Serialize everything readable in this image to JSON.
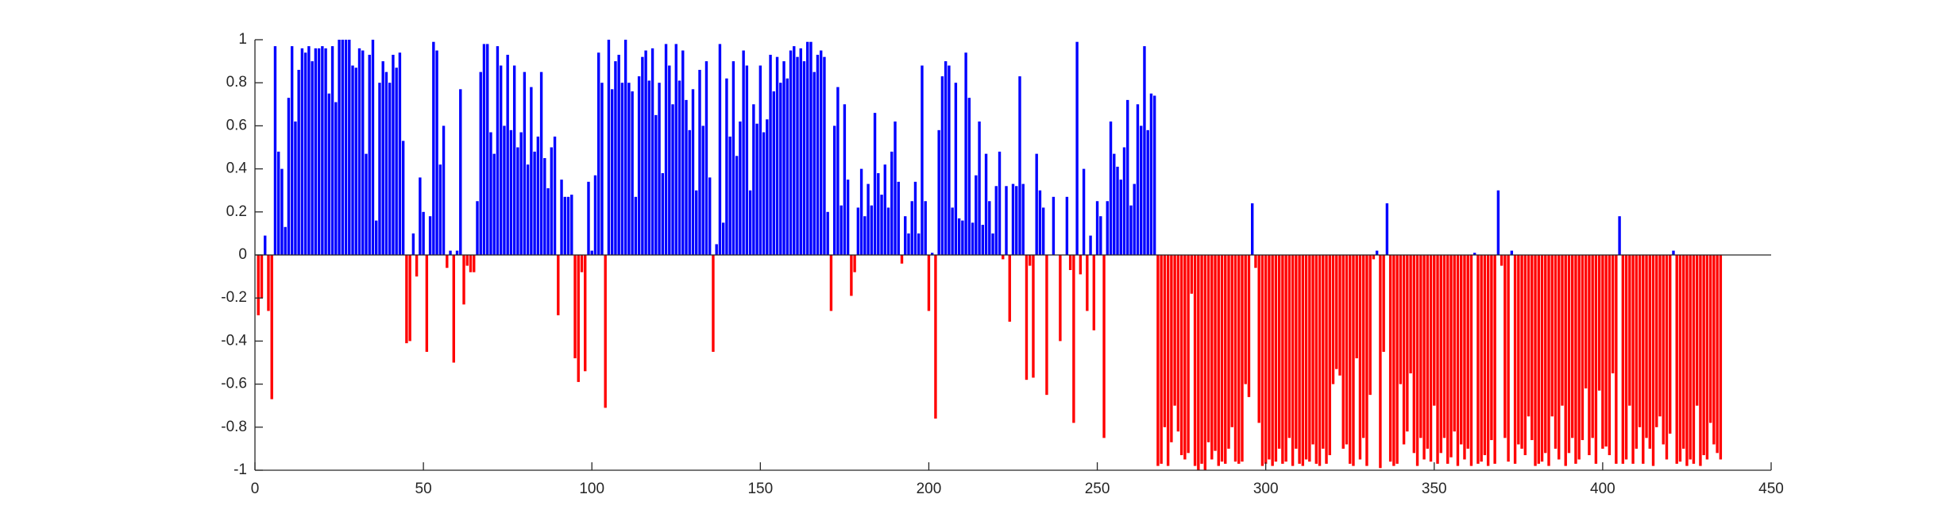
{
  "chart_data": {
    "type": "bar",
    "positive_color": "#0000ff",
    "negative_color": "#ff0000",
    "xlim": [
      0,
      450
    ],
    "xticks": [
      0,
      50,
      100,
      150,
      200,
      250,
      300,
      350,
      400,
      450
    ],
    "ylim": [
      -1,
      1
    ],
    "yticks": [
      -1,
      -0.8,
      -0.6,
      -0.4,
      -0.2,
      0,
      0.2,
      0.4,
      0.6,
      0.8,
      1
    ],
    "x": [
      1,
      2,
      3,
      4,
      5,
      6,
      7,
      8,
      9,
      10,
      11,
      12,
      13,
      14,
      15,
      16,
      17,
      18,
      19,
      20,
      21,
      22,
      23,
      24,
      25,
      26,
      27,
      28,
      29,
      30,
      31,
      32,
      33,
      34,
      35,
      36,
      37,
      38,
      39,
      40,
      41,
      42,
      43,
      44,
      45,
      46,
      47,
      48,
      49,
      50,
      51,
      52,
      53,
      54,
      55,
      56,
      57,
      58,
      59,
      60,
      61,
      62,
      63,
      64,
      65,
      66,
      67,
      68,
      69,
      70,
      71,
      72,
      73,
      74,
      75,
      76,
      77,
      78,
      79,
      80,
      81,
      82,
      83,
      84,
      85,
      86,
      87,
      88,
      89,
      90,
      91,
      92,
      93,
      94,
      95,
      96,
      97,
      98,
      99,
      100,
      101,
      102,
      103,
      104,
      105,
      106,
      107,
      108,
      109,
      110,
      111,
      112,
      113,
      114,
      115,
      116,
      117,
      118,
      119,
      120,
      121,
      122,
      123,
      124,
      125,
      126,
      127,
      128,
      129,
      130,
      131,
      132,
      133,
      134,
      135,
      136,
      137,
      138,
      139,
      140,
      141,
      142,
      143,
      144,
      145,
      146,
      147,
      148,
      149,
      150,
      151,
      152,
      153,
      154,
      155,
      156,
      157,
      158,
      159,
      160,
      161,
      162,
      163,
      164,
      165,
      166,
      167,
      168,
      169,
      170,
      171,
      172,
      173,
      174,
      175,
      176,
      177,
      178,
      179,
      180,
      181,
      182,
      183,
      184,
      185,
      186,
      187,
      188,
      189,
      190,
      191,
      192,
      193,
      194,
      195,
      196,
      197,
      198,
      199,
      200,
      201,
      202,
      203,
      204,
      205,
      206,
      207,
      208,
      209,
      210,
      211,
      212,
      213,
      214,
      215,
      216,
      217,
      218,
      219,
      220,
      221,
      222,
      223,
      224,
      225,
      226,
      227,
      228,
      229,
      230,
      231,
      232,
      233,
      234,
      235,
      236,
      237,
      238,
      239,
      240,
      241,
      242,
      243,
      244,
      245,
      246,
      247,
      248,
      249,
      250,
      251,
      252,
      253,
      254,
      255,
      256,
      257,
      258,
      259,
      260,
      261,
      262,
      263,
      264,
      265,
      266,
      267,
      268,
      269,
      270,
      271,
      272,
      273,
      274,
      275,
      276,
      277,
      278,
      279,
      280,
      281,
      282,
      283,
      284,
      285,
      286,
      287,
      288,
      289,
      290,
      291,
      292,
      293,
      294,
      295,
      296,
      297,
      298,
      299,
      300,
      301,
      302,
      303,
      304,
      305,
      306,
      307,
      308,
      309,
      310,
      311,
      312,
      313,
      314,
      315,
      316,
      317,
      318,
      319,
      320,
      321,
      322,
      323,
      324,
      325,
      326,
      327,
      328,
      329,
      330,
      331,
      332,
      333,
      334,
      335,
      336,
      337,
      338,
      339,
      340,
      341,
      342,
      343,
      344,
      345,
      346,
      347,
      348,
      349,
      350,
      351,
      352,
      353,
      354,
      355,
      356,
      357,
      358,
      359,
      360,
      361,
      362,
      363,
      364,
      365,
      366,
      367,
      368,
      369,
      370,
      371,
      372,
      373,
      374,
      375,
      376,
      377,
      378,
      379,
      380,
      381,
      382,
      383,
      384,
      385,
      386,
      387,
      388,
      389,
      390,
      391,
      392,
      393,
      394,
      395,
      396,
      397,
      398,
      399,
      400,
      401,
      402,
      403,
      404,
      405,
      406,
      407,
      408,
      409,
      410,
      411,
      412,
      413,
      414,
      415,
      416,
      417,
      418,
      419,
      420,
      421,
      422,
      423,
      424,
      425,
      426,
      427,
      428,
      429,
      430,
      431,
      432,
      433,
      434,
      435
    ],
    "values": [
      -0.28,
      -0.2,
      0.09,
      -0.26,
      -0.67,
      0.97,
      0.48,
      0.4,
      0.13,
      0.73,
      0.97,
      0.62,
      0.86,
      0.96,
      0.94,
      0.97,
      0.9,
      0.96,
      0.96,
      0.97,
      0.96,
      0.75,
      0.97,
      0.71,
      1,
      1,
      1,
      1,
      0.88,
      0.87,
      0.96,
      0.95,
      0.47,
      0.93,
      1,
      0.16,
      0.8,
      0.9,
      0.85,
      0.8,
      0.93,
      0.87,
      0.94,
      0.53,
      -0.41,
      -0.4,
      0.1,
      -0.1,
      0.36,
      0.2,
      -0.45,
      0.18,
      0.99,
      0.95,
      0.42,
      0.6,
      -0.06,
      0.02,
      -0.5,
      0.02,
      0.77,
      -0.23,
      -0.05,
      -0.08,
      -0.08,
      0.25,
      0.85,
      0.98,
      0.98,
      0.57,
      0.47,
      0.97,
      0.88,
      0.6,
      0.93,
      0.58,
      0.88,
      0.5,
      0.57,
      0.85,
      0.42,
      0.78,
      0.48,
      0.55,
      0.85,
      0.45,
      0.31,
      0.5,
      0.55,
      -0.28,
      0.35,
      0.27,
      0.27,
      0.28,
      -0.48,
      -0.59,
      -0.08,
      -0.54,
      0.34,
      0.02,
      0.37,
      0.94,
      0.8,
      -0.71,
      1,
      0.77,
      0.9,
      0.93,
      0.8,
      1,
      0.8,
      0.76,
      0.27,
      0.83,
      0.92,
      0.95,
      0.81,
      0.96,
      0.65,
      0.8,
      0.38,
      0.98,
      0.88,
      0.7,
      0.98,
      0.81,
      0.95,
      0.72,
      0.58,
      0.77,
      0.3,
      0.86,
      0.6,
      0.9,
      0.36,
      -0.45,
      0.05,
      0.98,
      0.15,
      0.82,
      0.55,
      0.9,
      0.46,
      0.62,
      0.95,
      0.88,
      0.3,
      0.7,
      0.61,
      0.88,
      0.57,
      0.63,
      0.93,
      0.76,
      0.92,
      0.8,
      0.9,
      0.82,
      0.95,
      0.97,
      0.92,
      0.96,
      0.9,
      0.99,
      0.99,
      0.85,
      0.93,
      0.95,
      0.92,
      0.2,
      -0.26,
      0.6,
      0.78,
      0.23,
      0.7,
      0.35,
      -0.19,
      -0.08,
      0.22,
      0.4,
      0.18,
      0.33,
      0.23,
      0.66,
      0.38,
      0.28,
      0.42,
      0.22,
      0.48,
      0.62,
      0.34,
      -0.04,
      0.18,
      0.1,
      0.25,
      0.34,
      0.1,
      0.88,
      0.25,
      -0.26,
      0.01,
      -0.76,
      0.58,
      0.83,
      0.9,
      0.88,
      0.22,
      0.8,
      0.17,
      0.16,
      0.94,
      0.73,
      0.15,
      0.37,
      0.62,
      0.14,
      0.47,
      0.25,
      0.1,
      0.32,
      0.48,
      -0.02,
      0.32,
      -0.31,
      0.33,
      0.32,
      0.83,
      0.33,
      -0.58,
      -0.05,
      -0.57,
      0.47,
      0.3,
      0.22,
      -0.65,
      0,
      0.27,
      0,
      -0.4,
      0,
      0.27,
      -0.07,
      -0.78,
      0.99,
      -0.09,
      0.4,
      -0.26,
      0.09,
      -0.35,
      0.25,
      0.18,
      -0.85,
      0.25,
      0.62,
      0.47,
      0.41,
      0.35,
      0.5,
      0.72,
      0.23,
      0.33,
      0.7,
      0.6,
      0.97,
      0.58,
      0.75,
      0.74,
      -0.98,
      -0.97,
      -0.8,
      -0.98,
      -0.87,
      -0.7,
      -0.82,
      -0.93,
      -0.95,
      -0.92,
      -0.18,
      -0.98,
      -1,
      -0.97,
      -1,
      -0.87,
      -0.95,
      -0.91,
      -0.98,
      -0.96,
      -0.97,
      -0.9,
      -0.8,
      -0.96,
      -0.97,
      -0.96,
      -0.6,
      -0.66,
      0.24,
      -0.06,
      -0.78,
      -0.98,
      -0.97,
      -0.95,
      -0.98,
      -0.96,
      -0.9,
      -0.97,
      -0.96,
      -0.85,
      -0.98,
      -0.9,
      -0.97,
      -0.98,
      -0.95,
      -0.96,
      -0.88,
      -0.97,
      -0.98,
      -0.9,
      -0.97,
      -0.93,
      -0.6,
      -0.53,
      -0.56,
      -0.9,
      -0.88,
      -0.97,
      -0.98,
      -0.48,
      -0.95,
      -0.85,
      -0.98,
      -0.65,
      -0.02,
      0.02,
      -0.99,
      -0.45,
      0.24,
      -0.96,
      -0.98,
      -0.97,
      -0.6,
      -0.88,
      -0.82,
      -0.55,
      -0.92,
      -0.98,
      -0.85,
      -0.95,
      -0.9,
      -0.96,
      -0.7,
      -0.97,
      -0.92,
      -0.85,
      -0.97,
      -0.94,
      -0.82,
      -0.98,
      -0.88,
      -0.95,
      -0.9,
      -0.98,
      0.01,
      -0.97,
      -0.96,
      -0.93,
      -0.98,
      -0.86,
      -0.97,
      0.3,
      -0.05,
      -0.85,
      -0.96,
      0.02,
      -0.97,
      -0.88,
      -0.9,
      -0.93,
      -0.75,
      -0.86,
      -0.98,
      -0.97,
      -0.96,
      -0.92,
      -0.98,
      -0.75,
      -0.9,
      -0.95,
      -0.7,
      -0.98,
      -0.92,
      -0.85,
      -0.97,
      -0.95,
      -0.86,
      -0.62,
      -0.93,
      -0.85,
      -0.97,
      -0.63,
      -0.9,
      -0.89,
      -0.93,
      -0.55,
      -0.97,
      0.18,
      -0.97,
      -0.95,
      -0.7,
      -0.97,
      -0.9,
      -0.8,
      -0.97,
      -0.85,
      -0.9,
      -0.98,
      -0.8,
      -0.75,
      -0.88,
      -0.95,
      -0.83,
      0.02,
      -0.97,
      -0.96,
      -0.9,
      -0.98,
      -0.95,
      -0.97,
      -0.7,
      -0.98,
      -0.93,
      -0.95,
      -0.78,
      -0.88,
      -0.92,
      -0.95
    ]
  }
}
